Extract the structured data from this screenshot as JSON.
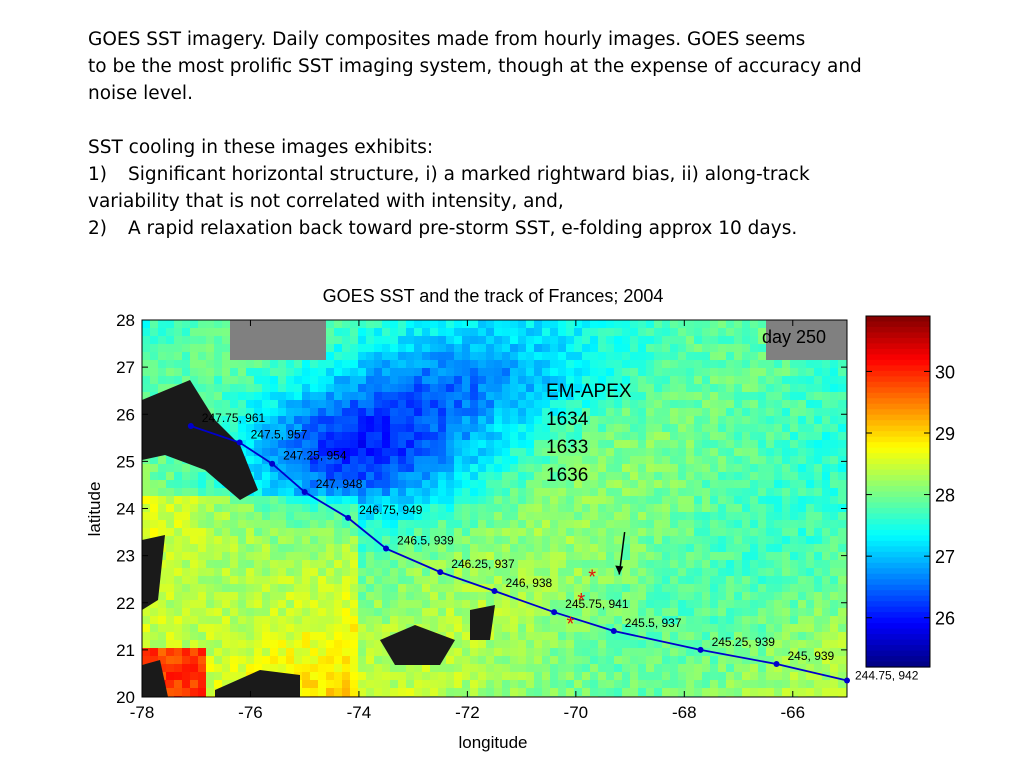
{
  "slide": {
    "paragraph1": "GOES SST imagery.  Daily composites made from hourly images. GOES seems\nto be the most prolific SST imaging system, though at the expense of accuracy and\nnoise level.",
    "intro": "SST cooling in these images exhibits:",
    "item1_num": "1)",
    "item1_text": "Significant horizontal structure, i) a marked rightward bias, ii) along-track",
    "item1_cont": "variability that is not correlated with intensity, and,",
    "item2_num": "2)",
    "item2_text": "A rapid relaxation back toward pre-storm SST, e-folding approx 10 days."
  },
  "chart_data": {
    "type": "heatmap",
    "title": "GOES SST and the track of Frances; 2004",
    "xlabel": "longitude",
    "ylabel": "latitude",
    "xlim": [
      -78,
      -65
    ],
    "ylim": [
      20,
      28
    ],
    "xticks": [
      "-78",
      "-76",
      "-74",
      "-72",
      "-70",
      "-68",
      "-66"
    ],
    "yticks": [
      "20",
      "21",
      "22",
      "23",
      "24",
      "25",
      "26",
      "27",
      "28"
    ],
    "day_label": "day 250",
    "annotation": {
      "lines": [
        "EM-APEX",
        "1634",
        "1633",
        "1636"
      ],
      "arrow_from": [
        -69.1,
        23.5
      ],
      "arrow_to": [
        -69.2,
        22.6
      ]
    },
    "colorbar": {
      "range": [
        25.2,
        30.9
      ],
      "ticks": [
        "26",
        "27",
        "28",
        "29",
        "30"
      ],
      "colormap": "jet"
    },
    "land_color": "#1a1a1a",
    "missing_color": "#808080",
    "track_color": "#0000cc",
    "floats": [
      {
        "lon": -69.7,
        "lat": 22.6
      },
      {
        "lon": -69.9,
        "lat": 22.1
      },
      {
        "lon": -70.1,
        "lat": 21.6
      }
    ],
    "track": [
      {
        "lon": -77.1,
        "lat": 25.75,
        "label": "247.75, 961"
      },
      {
        "lon": -76.2,
        "lat": 25.4,
        "label": "247.5, 957"
      },
      {
        "lon": -75.6,
        "lat": 24.95,
        "label": "247.25, 954"
      },
      {
        "lon": -75.0,
        "lat": 24.35,
        "label": "247, 948"
      },
      {
        "lon": -74.2,
        "lat": 23.8,
        "label": "246.75, 949"
      },
      {
        "lon": -73.5,
        "lat": 23.15,
        "label": "246.5, 939"
      },
      {
        "lon": -72.5,
        "lat": 22.65,
        "label": "246.25, 937"
      },
      {
        "lon": -71.5,
        "lat": 22.25,
        "label": "246, 938"
      },
      {
        "lon": -70.4,
        "lat": 21.8,
        "label": "245.75, 941"
      },
      {
        "lon": -69.3,
        "lat": 21.4,
        "label": "245.5, 937"
      },
      {
        "lon": -67.7,
        "lat": 21.0,
        "label": "245.25, 939"
      },
      {
        "lon": -66.3,
        "lat": 20.7,
        "label": "245, 939"
      },
      {
        "lon": -65.0,
        "lat": 20.35,
        "label": "244.75, 942"
      }
    ]
  }
}
